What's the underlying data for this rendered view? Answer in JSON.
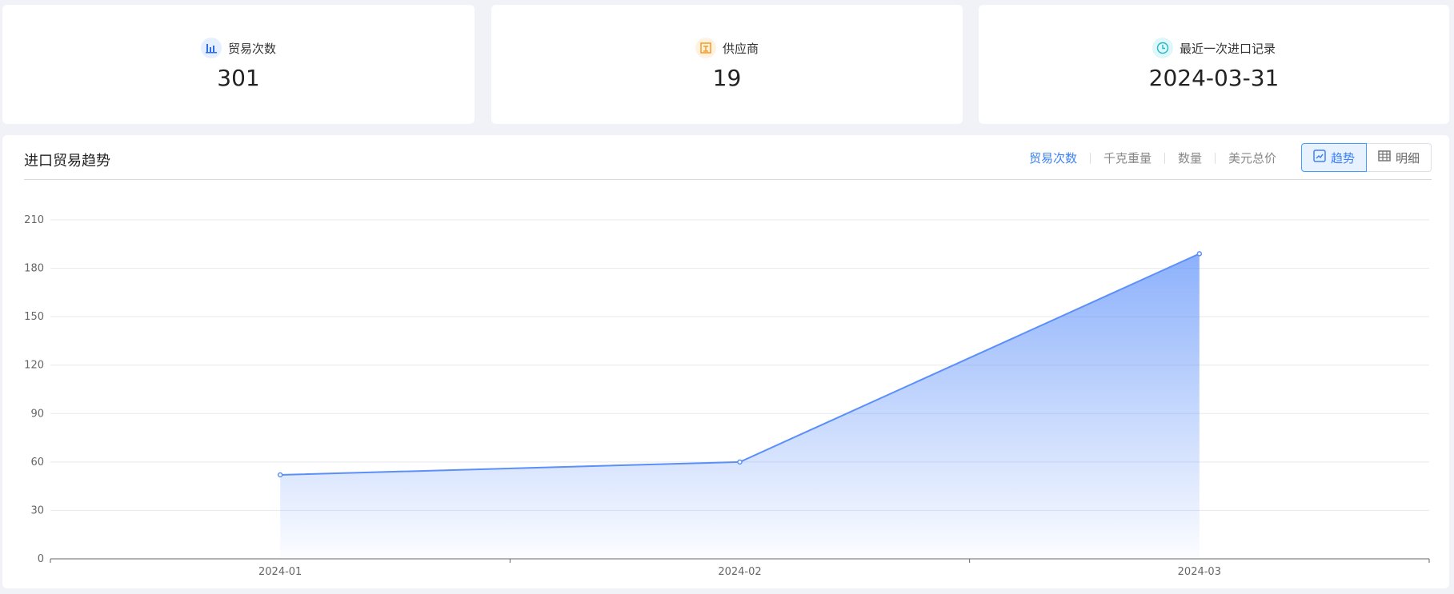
{
  "stats": [
    {
      "label": "贸易次数",
      "value": "301",
      "icon": "bar-chart-icon",
      "color": "#2f6fe0",
      "bg": "#e6efff"
    },
    {
      "label": "供应商",
      "value": "19",
      "icon": "store-icon",
      "color": "#f59a23",
      "bg": "#fff2e0"
    },
    {
      "label": "最近一次进口记录",
      "value": "2024-03-31",
      "icon": "clock-icon",
      "color": "#1fb8c8",
      "bg": "#e0f7f9"
    }
  ],
  "panel": {
    "title": "进口贸易趋势",
    "metrics": [
      "贸易次数",
      "千克重量",
      "数量",
      "美元总价"
    ],
    "active_metric": "贸易次数",
    "view_toggle": {
      "trend": "趋势",
      "detail": "明细",
      "active": "趋势"
    }
  },
  "chart_data": {
    "type": "area",
    "categories": [
      "2024-01",
      "2024-02",
      "2024-03"
    ],
    "values": [
      52,
      60,
      189
    ],
    "ylim": [
      0,
      210
    ],
    "yticks": [
      0,
      30,
      60,
      90,
      120,
      150,
      180,
      210
    ],
    "grid": true,
    "color": "#5b8ff9"
  }
}
